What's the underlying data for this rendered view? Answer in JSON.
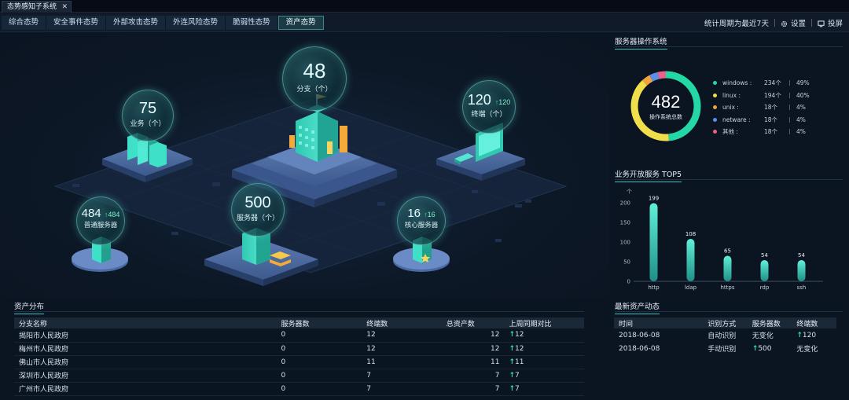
{
  "window": {
    "tab_title": "态势感知子系统",
    "close_glyph": "✕"
  },
  "nav": {
    "tabs": [
      "综合态势",
      "安全事件态势",
      "外部攻击态势",
      "外连风险态势",
      "脆弱性态势",
      "资产态势"
    ],
    "active_index": 5,
    "period_label": "统计周期为最近7天",
    "settings_label": "设置",
    "cast_label": "投屏"
  },
  "scene": {
    "branch": {
      "value": "48",
      "label": "分支（个）"
    },
    "business": {
      "value": "75",
      "label": "业务（个）"
    },
    "terminal": {
      "value": "120",
      "up": "120",
      "label": "终端（个）"
    },
    "server": {
      "value": "500",
      "label": "服务器（个）"
    },
    "normal_server": {
      "value": "484",
      "up": "484",
      "label": "普通服务器"
    },
    "core_server": {
      "value": "16",
      "up": "16",
      "label": "核心服务器"
    }
  },
  "os_panel": {
    "title": "服务器操作系统",
    "total": "482",
    "total_label": "操作系统总数",
    "items": [
      {
        "name": "windows :",
        "count": "234个",
        "pct": "49%",
        "value": 49,
        "color": "#24d8a6"
      },
      {
        "name": "linux :",
        "count": "194个",
        "pct": "40%",
        "value": 40,
        "color": "#f0de4a"
      },
      {
        "name": "unix :",
        "count": "18个",
        "pct": "4%",
        "value": 4,
        "color": "#f2a23a"
      },
      {
        "name": "netware :",
        "count": "18个",
        "pct": "4%",
        "value": 4,
        "color": "#5b8fe8"
      },
      {
        "name": "其他 :",
        "count": "18个",
        "pct": "4%",
        "value": 4,
        "color": "#ee5f8a"
      }
    ]
  },
  "top5": {
    "title": "业务开放服务 TOP5",
    "unit": "个",
    "chart_data": {
      "type": "bar",
      "categories": [
        "http",
        "ldap",
        "https",
        "rdp",
        "ssh"
      ],
      "values": [
        199,
        108,
        65,
        54,
        54
      ],
      "ylim": [
        0,
        200
      ],
      "yticks": [
        "0",
        "50",
        "100",
        "150",
        "200"
      ]
    }
  },
  "assets": {
    "title": "资产分布",
    "headers": [
      "分支名称",
      "服务器数",
      "终端数",
      "总资产数",
      "上周同期对比"
    ],
    "up_glyph": "🡑",
    "rows": [
      {
        "name": "揭阳市人民政府",
        "servers": "0",
        "terminals": "12",
        "total": "12",
        "compare": "12"
      },
      {
        "name": "梅州市人民政府",
        "servers": "0",
        "terminals": "12",
        "total": "12",
        "compare": "12"
      },
      {
        "name": "佛山市人民政府",
        "servers": "0",
        "terminals": "11",
        "total": "11",
        "compare": "11"
      },
      {
        "name": "深圳市人民政府",
        "servers": "0",
        "terminals": "7",
        "total": "7",
        "compare": "7"
      },
      {
        "name": "广州市人民政府",
        "servers": "0",
        "terminals": "7",
        "total": "7",
        "compare": "7"
      }
    ]
  },
  "new_assets": {
    "title": "最新资产动态",
    "headers": [
      "时间",
      "识别方式",
      "服务器数",
      "终端数"
    ],
    "rows": [
      {
        "time": "2018-06-08",
        "method": "自动识别",
        "servers": "无变化",
        "servers_up": false,
        "terminals": "120",
        "terminals_up": true
      },
      {
        "time": "2018-06-08",
        "method": "手动识别",
        "servers": "500",
        "servers_up": true,
        "terminals": "无变化",
        "terminals_up": false
      }
    ]
  }
}
